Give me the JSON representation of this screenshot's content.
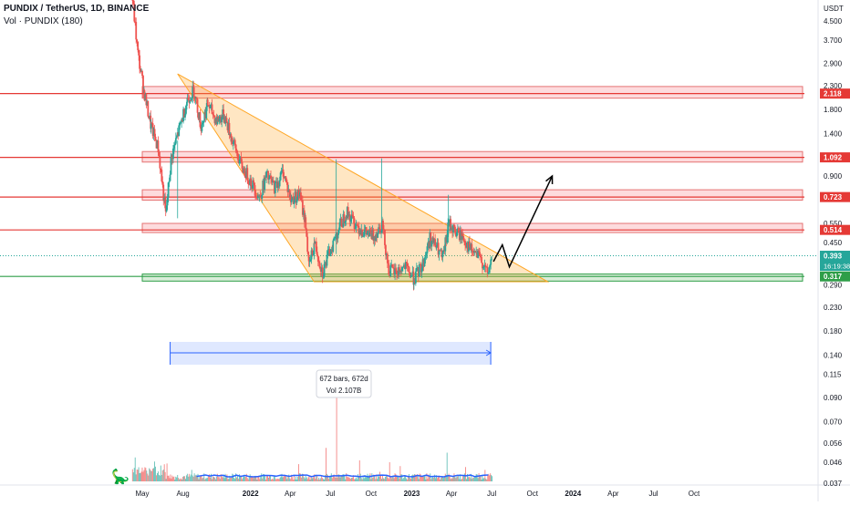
{
  "header": {
    "title": "PUNDIX / TetherUS, 1D, BINANCE",
    "volume_label": "Vol · PUNDIX (180)",
    "currency": "USDT"
  },
  "chart_data": {
    "type": "candlestick",
    "scale": "log",
    "ylim": [
      0.037,
      5.6
    ],
    "y_ticks": [
      "4.500",
      "3.700",
      "2.900",
      "2.300",
      "1.800",
      "1.400",
      "0.900",
      "0.550",
      "0.450",
      "0.290",
      "0.230",
      "0.180",
      "0.140",
      "0.115",
      "0.090",
      "0.070",
      "0.056",
      "0.046",
      "0.037"
    ],
    "x_ticks": [
      "May",
      "Aug",
      "2022",
      "Apr",
      "Jul",
      "Oct",
      "2023",
      "Apr",
      "Jul",
      "Oct",
      "2024",
      "Apr",
      "Jul",
      "Oct"
    ],
    "x_tick_dates": [
      "2021-05-01",
      "2021-08-01",
      "2022-01-01",
      "2022-04-01",
      "2022-07-01",
      "2022-10-01",
      "2023-01-01",
      "2023-04-01",
      "2023-07-01",
      "2023-10-01",
      "2024-01-01",
      "2024-04-01",
      "2024-07-01",
      "2024-10-01"
    ],
    "price_path": [
      [
        "2021-04-08",
        5.6
      ],
      [
        "2021-04-20",
        3.2
      ],
      [
        "2021-05-05",
        2.1
      ],
      [
        "2021-05-20",
        1.5
      ],
      [
        "2021-06-05",
        1.2
      ],
      [
        "2021-06-22",
        0.6
      ],
      [
        "2021-07-05",
        1.1
      ],
      [
        "2021-07-20",
        1.4
      ],
      [
        "2021-08-10",
        2.0
      ],
      [
        "2021-08-25",
        2.2
      ],
      [
        "2021-09-10",
        1.5
      ],
      [
        "2021-09-25",
        1.9
      ],
      [
        "2021-10-15",
        1.6
      ],
      [
        "2021-11-01",
        1.7
      ],
      [
        "2021-11-20",
        1.3
      ],
      [
        "2021-12-10",
        1.0
      ],
      [
        "2022-01-01",
        0.85
      ],
      [
        "2022-01-20",
        0.72
      ],
      [
        "2022-02-05",
        0.9
      ],
      [
        "2022-02-25",
        0.8
      ],
      [
        "2022-03-15",
        0.95
      ],
      [
        "2022-04-01",
        0.7
      ],
      [
        "2022-04-20",
        0.75
      ],
      [
        "2022-05-05",
        0.55
      ],
      [
        "2022-05-12",
        0.35
      ],
      [
        "2022-05-25",
        0.45
      ],
      [
        "2022-06-12",
        0.33
      ],
      [
        "2022-06-30",
        0.42
      ],
      [
        "2022-07-15",
        0.5
      ],
      [
        "2022-08-05",
        0.62
      ],
      [
        "2022-08-25",
        0.55
      ],
      [
        "2022-09-15",
        0.5
      ],
      [
        "2022-10-05",
        0.48
      ],
      [
        "2022-10-25",
        0.55
      ],
      [
        "2022-11-09",
        0.34
      ],
      [
        "2022-11-25",
        0.33
      ],
      [
        "2022-12-15",
        0.35
      ],
      [
        "2023-01-05",
        0.31
      ],
      [
        "2023-01-25",
        0.36
      ],
      [
        "2023-02-10",
        0.47
      ],
      [
        "2023-02-25",
        0.43
      ],
      [
        "2023-03-11",
        0.38
      ],
      [
        "2023-03-25",
        0.55
      ],
      [
        "2023-04-10",
        0.5
      ],
      [
        "2023-04-25",
        0.48
      ],
      [
        "2023-05-12",
        0.42
      ],
      [
        "2023-05-30",
        0.39
      ],
      [
        "2023-06-12",
        0.36
      ],
      [
        "2023-06-20",
        0.32
      ],
      [
        "2023-06-28",
        0.37
      ],
      [
        "2023-07-02",
        0.393
      ]
    ],
    "volume_spikes": [
      [
        "2022-07-14",
        1.0
      ],
      [
        "2022-06-20",
        0.35
      ],
      [
        "2022-09-05",
        0.22
      ],
      [
        "2023-03-22",
        0.3
      ],
      [
        "2022-04-18",
        0.18
      ],
      [
        "2022-11-12",
        0.2
      ],
      [
        "2023-05-01",
        0.15
      ],
      [
        "2021-04-15",
        0.25
      ],
      [
        "2021-08-20",
        0.12
      ],
      [
        "2022-10-20",
        0.1
      ],
      [
        "2023-06-15",
        0.12
      ],
      [
        "2022-12-05",
        0.16
      ]
    ],
    "resistance_zones": [
      {
        "label": "2.118",
        "color": "#e53935"
      },
      {
        "label": "1.092",
        "color": "#e53935"
      },
      {
        "label": "0.723",
        "color": "#e53935"
      },
      {
        "label": "0.514",
        "color": "#e53935"
      }
    ],
    "support_zone": {
      "label": "0.317",
      "color": "#2e9e48"
    },
    "last_price": {
      "label": "0.393",
      "countdown": "16:19:38",
      "color": "#26a69a"
    },
    "triangle": {
      "apex_date": "2023-11-05",
      "start_date": "2021-07-20",
      "top_price": 2.6,
      "base_price": 0.3
    },
    "projection": [
      [
        "2023-07-05",
        0.37
      ],
      [
        "2023-07-25",
        0.44
      ],
      [
        "2023-08-10",
        0.35
      ],
      [
        "2023-11-15",
        0.9
      ]
    ],
    "measurement": {
      "start_date": "2021-08-01",
      "end_date": "2023-07-05",
      "bars_label": "672 bars, 672d",
      "vol_label": "Vol 2.107B"
    }
  }
}
